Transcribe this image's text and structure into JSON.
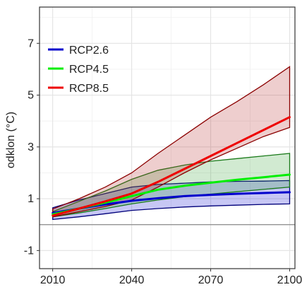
{
  "chart_data": {
    "type": "line",
    "title": "",
    "xlabel": "",
    "ylabel": "odklon (°C)",
    "xlim": [
      2005,
      2102
    ],
    "ylim": [
      -1.7,
      8.4
    ],
    "x_ticks": [
      2010,
      2040,
      2070,
      2100
    ],
    "y_ticks": [
      -1,
      1,
      3,
      5,
      7
    ],
    "x_tick_labels": [
      "2010",
      "2040",
      "2070",
      "2100"
    ],
    "y_tick_labels": [
      "-1",
      "1",
      "3",
      "5",
      "7"
    ],
    "grid": true,
    "reference_line": 0,
    "legend": {
      "position": "top-left"
    },
    "series": [
      {
        "name": "RCP2.6",
        "color": "#0000cc",
        "band_fill": "#0000cc",
        "band_edge": "#00007a",
        "x": [
          2010,
          2020,
          2030,
          2040,
          2050,
          2060,
          2070,
          2080,
          2090,
          2100
        ],
        "mean": [
          0.45,
          0.62,
          0.78,
          0.92,
          1.02,
          1.1,
          1.15,
          1.19,
          1.22,
          1.25
        ],
        "lower": [
          0.2,
          0.3,
          0.42,
          0.55,
          0.62,
          0.68,
          0.72,
          0.75,
          0.78,
          0.8
        ],
        "upper": [
          0.65,
          0.95,
          1.2,
          1.45,
          1.55,
          1.6,
          1.65,
          1.67,
          1.68,
          1.7
        ]
      },
      {
        "name": "RCP4.5",
        "color": "#00ee00",
        "band_fill": "#2ca02c",
        "band_edge": "#1a7a1a",
        "x": [
          2010,
          2020,
          2030,
          2040,
          2050,
          2060,
          2070,
          2080,
          2090,
          2100
        ],
        "mean": [
          0.4,
          0.62,
          0.85,
          1.1,
          1.35,
          1.5,
          1.62,
          1.73,
          1.83,
          1.93
        ],
        "lower": [
          0.3,
          0.45,
          0.62,
          0.8,
          0.95,
          1.08,
          1.18,
          1.27,
          1.36,
          1.45
        ],
        "upper": [
          0.5,
          0.9,
          1.3,
          1.75,
          2.1,
          2.3,
          2.45,
          2.55,
          2.65,
          2.75
        ]
      },
      {
        "name": "RCP8.5",
        "color": "#ee0000",
        "band_fill": "#b22222",
        "band_edge": "#8b0000",
        "x": [
          2010,
          2020,
          2030,
          2040,
          2050,
          2060,
          2070,
          2080,
          2090,
          2100
        ],
        "mean": [
          0.35,
          0.62,
          0.9,
          1.2,
          1.65,
          2.15,
          2.65,
          3.15,
          3.65,
          4.15
        ],
        "lower": [
          0.3,
          0.5,
          0.7,
          0.95,
          1.45,
          2.0,
          2.5,
          2.95,
          3.4,
          3.75
        ],
        "upper": [
          0.6,
          1.0,
          1.45,
          2.0,
          2.75,
          3.45,
          4.15,
          4.75,
          5.4,
          6.1
        ]
      }
    ]
  }
}
